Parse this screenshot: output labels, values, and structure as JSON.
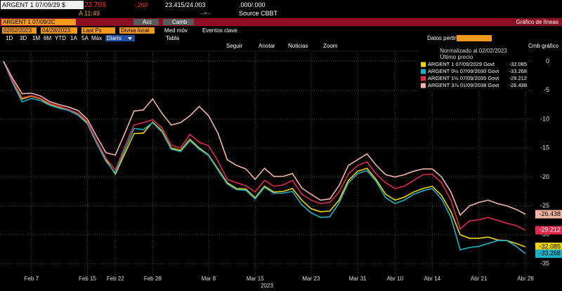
{
  "header": {
    "security": "ARGENT 1 07/09/29 $",
    "price": "23.709",
    "change": "-.260",
    "bid_ask": "23.415/24.003",
    "yield": ".000/.000",
    "time": "A 11:49",
    "size": "--×--",
    "source": "Source CBBT"
  },
  "toolbar": {
    "ticker": "ARGENT 1 07/09/2C",
    "actions": [
      "Acc",
      "Camb"
    ],
    "view": "Gráfico de líneas",
    "start_date": "02/02/2023",
    "end_date": "04/28/2023",
    "field": "Last Px",
    "currency": "Divisa local",
    "options": [
      "Med móv",
      "Eventos clave"
    ],
    "periods": [
      "1D",
      "3D",
      "1M",
      "6M",
      "YTD",
      "1A",
      "5A",
      "Máx"
    ],
    "frequency": "Diario",
    "table": "Tabla",
    "relevant": "Datos pertinent",
    "tools": [
      "Seguir",
      "Anotar",
      "Noticias",
      "Zoom"
    ],
    "chart_settings": "Cmb gráfico"
  },
  "chart_data": {
    "type": "line",
    "legend_title": "Normalizado al 02/02/2023",
    "legend_subtitle": "Último precio",
    "xlabel": "2023",
    "ylim": [
      -37.3,
      1.4
    ],
    "yticks": [
      0,
      -5,
      -10,
      -15,
      -20,
      -25,
      -30,
      -35
    ],
    "grid": true,
    "categories": [
      null,
      null,
      null,
      "Feb 7",
      null,
      null,
      null,
      null,
      null,
      "Feb 15",
      null,
      null,
      "Feb 22",
      null,
      null,
      null,
      "Feb 28",
      null,
      null,
      null,
      null,
      null,
      "Mar 8",
      null,
      null,
      null,
      null,
      "Mar 15",
      null,
      null,
      null,
      null,
      null,
      "Mar 23",
      null,
      null,
      null,
      null,
      "Mar 31",
      null,
      null,
      null,
      "Abr 10",
      null,
      null,
      null,
      "Abr 14",
      null,
      null,
      null,
      null,
      "Abr 21",
      null,
      null,
      null,
      null,
      "Abr 28"
    ],
    "series": [
      {
        "name": "ARGENT 1 07/09/2029 Govt",
        "color": "#f2d600",
        "values": [
          0,
          -3.5,
          -6.5,
          -6,
          -6.5,
          -7.5,
          -8,
          -8.5,
          -9.2,
          -10.6,
          -14,
          -17,
          -19.5,
          -16,
          -12.5,
          -12.4,
          -10.5,
          -12,
          -15,
          -15.4,
          -13.5,
          -15,
          -16.2,
          -18.6,
          -21,
          -22,
          -22.1,
          -23.6,
          -21.6,
          -22.6,
          -22.5,
          -22,
          -24,
          -25.5,
          -26,
          -25.9,
          -24,
          -20.6,
          -19,
          -18.5,
          -20.5,
          -23,
          -24,
          -23.5,
          -22.6,
          -22,
          -21.6,
          -23.2,
          -26,
          -30,
          -30.6,
          -30.6,
          -30.4,
          -30.9,
          -31,
          -31.5,
          -32.085
        ]
      },
      {
        "name": "ARGENT 0½ 07/09/2030 Govt",
        "color": "#1ab2c6",
        "values": [
          0,
          -3.8,
          -7,
          -6.4,
          -6.8,
          -7.6,
          -8.1,
          -8.5,
          -9.3,
          -10.8,
          -14.2,
          -17.3,
          -19.3,
          -15.4,
          -11.6,
          -11.8,
          -10.6,
          -12.2,
          -15.2,
          -15.6,
          -13.7,
          -15.2,
          -16.3,
          -18.8,
          -21.2,
          -22.2,
          -22.3,
          -23.8,
          -21.8,
          -22.8,
          -22.8,
          -22.5,
          -24.8,
          -26.2,
          -27,
          -26.9,
          -24.5,
          -21,
          -19.4,
          -18.9,
          -20.8,
          -23.6,
          -24.6,
          -24,
          -23,
          -22.4,
          -22,
          -23.8,
          -27,
          -32.6,
          -32.2,
          -32,
          -31.5,
          -31,
          -31,
          -32,
          -33.268
        ]
      },
      {
        "name": "ARGENT 1½ 07/09/2035 Govt",
        "color": "#e0284a",
        "values": [
          0,
          -3.4,
          -6.3,
          -5.9,
          -6.4,
          -7.3,
          -7.8,
          -8.3,
          -9,
          -10.4,
          -13.8,
          -16.8,
          -18.8,
          -14.8,
          -11,
          -10.6,
          -10.1,
          -11.5,
          -14.5,
          -15,
          -12.6,
          -14,
          -14.6,
          -17.2,
          -20.4,
          -21,
          -21.5,
          -22.6,
          -20.6,
          -21.6,
          -21.4,
          -20.6,
          -23,
          -24,
          -24.6,
          -24.4,
          -22.6,
          -19.5,
          -18,
          -17.4,
          -19.5,
          -21,
          -22,
          -21.6,
          -20.6,
          -19.6,
          -19.5,
          -21,
          -24,
          -29,
          -27.6,
          -27.4,
          -27,
          -27.5,
          -28,
          -28.4,
          -29.212
        ]
      },
      {
        "name": "ARGENT 3⅞ 01/09/2038 Govt",
        "color": "#f2b4a4",
        "values": [
          0,
          -3,
          -5.6,
          -5.5,
          -6,
          -7,
          -7.5,
          -7.9,
          -8.5,
          -10,
          -13,
          -15.8,
          -16.2,
          -12.5,
          -8.6,
          -8.4,
          -6.5,
          -9,
          -11,
          -10.6,
          -9.4,
          -7.8,
          -9.4,
          -12.4,
          -17,
          -18,
          -18.6,
          -20.4,
          -18.5,
          -19.9,
          -19.9,
          -19.4,
          -21.9,
          -23,
          -24,
          -23.8,
          -21.5,
          -18,
          -17,
          -16,
          -18,
          -19.6,
          -20,
          -19.6,
          -19,
          -18.6,
          -18.6,
          -20,
          -22.6,
          -26.6,
          -25,
          -24.4,
          -24,
          -24.6,
          -25,
          -25.6,
          -26.438
        ]
      }
    ]
  }
}
